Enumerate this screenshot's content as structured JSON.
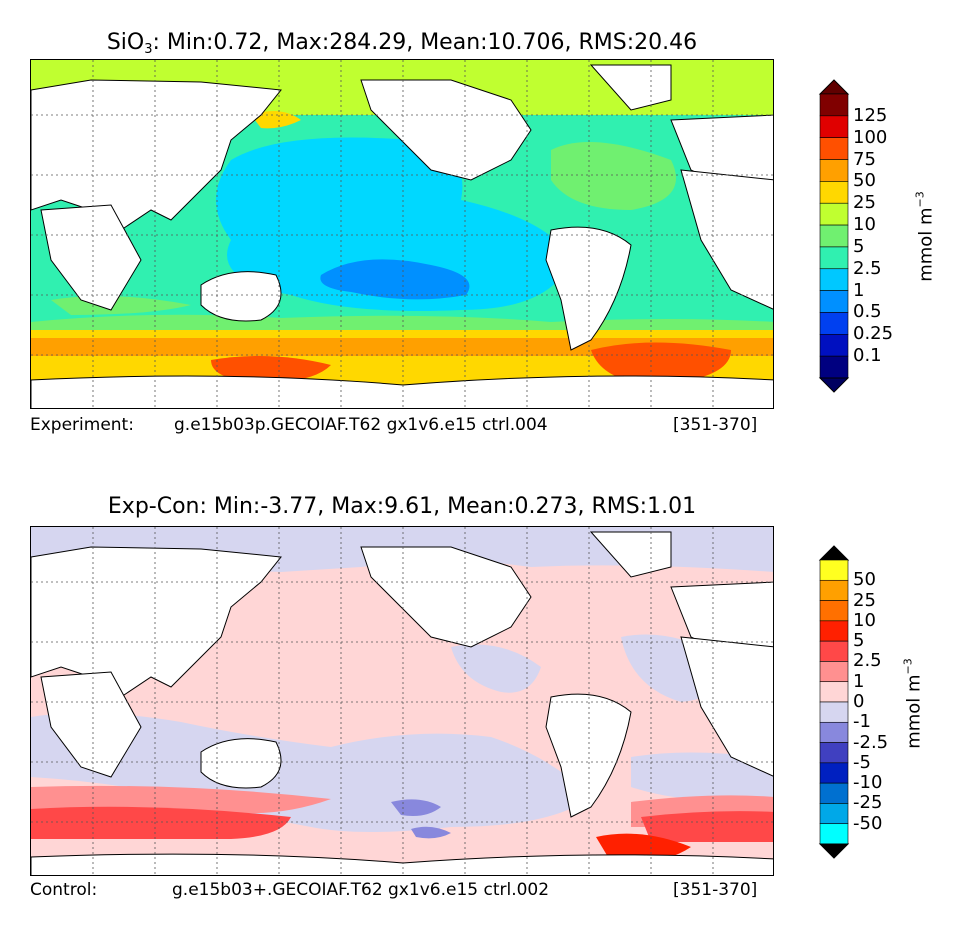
{
  "top_panel": {
    "title_prefix": "SiO",
    "title_subscript": "3",
    "title_rest": ": Min:0.72, Max:284.29, Mean:10.706, RMS:20.46",
    "caption_label": "Experiment:",
    "caption_case": "g.e15b03p.GECOIAF.T62 gx1v6.e15 ctrl.004",
    "caption_years": "[351-370]",
    "colorbar": {
      "levels": [
        "125",
        "100",
        "75",
        "50",
        "25",
        "10",
        "5",
        "2.5",
        "1",
        "0.5",
        "0.25",
        "0.1"
      ],
      "colors": [
        "#800000",
        "#e00000",
        "#ff5000",
        "#ffa000",
        "#ffd800",
        "#c0ff30",
        "#70f070",
        "#30f0b0",
        "#00c8ff",
        "#0090ff",
        "#0040f0",
        "#0010c0",
        "#000080"
      ],
      "over_color": "#600000",
      "under_color": "#000060",
      "unit_main": "mmol m",
      "unit_exp": "−3"
    }
  },
  "bottom_panel": {
    "title": "Exp-Con: Min:-3.77, Max:9.61, Mean:0.273, RMS:1.01",
    "caption_label": "Control:",
    "caption_case": "g.e15b03+.GECOIAF.T62 gx1v6.e15 ctrl.002",
    "caption_years": "[351-370]",
    "colorbar": {
      "levels": [
        "50",
        "25",
        "10",
        "5",
        "2.5",
        "1",
        "0",
        "-1",
        "-2.5",
        "-5",
        "-10",
        "-25",
        "-50"
      ],
      "colors": [
        "#ffff20",
        "#ffa000",
        "#ff7000",
        "#ff2000",
        "#ff4848",
        "#ff9090",
        "#ffd6d6",
        "#d6d6f0",
        "#8888dd",
        "#4040c0",
        "#0020c0",
        "#0070d0",
        "#00a8e8",
        "#00ffff"
      ],
      "over_color": "#000000",
      "under_color": "#000000",
      "unit_main": "mmol m",
      "unit_exp": "−3"
    }
  }
}
